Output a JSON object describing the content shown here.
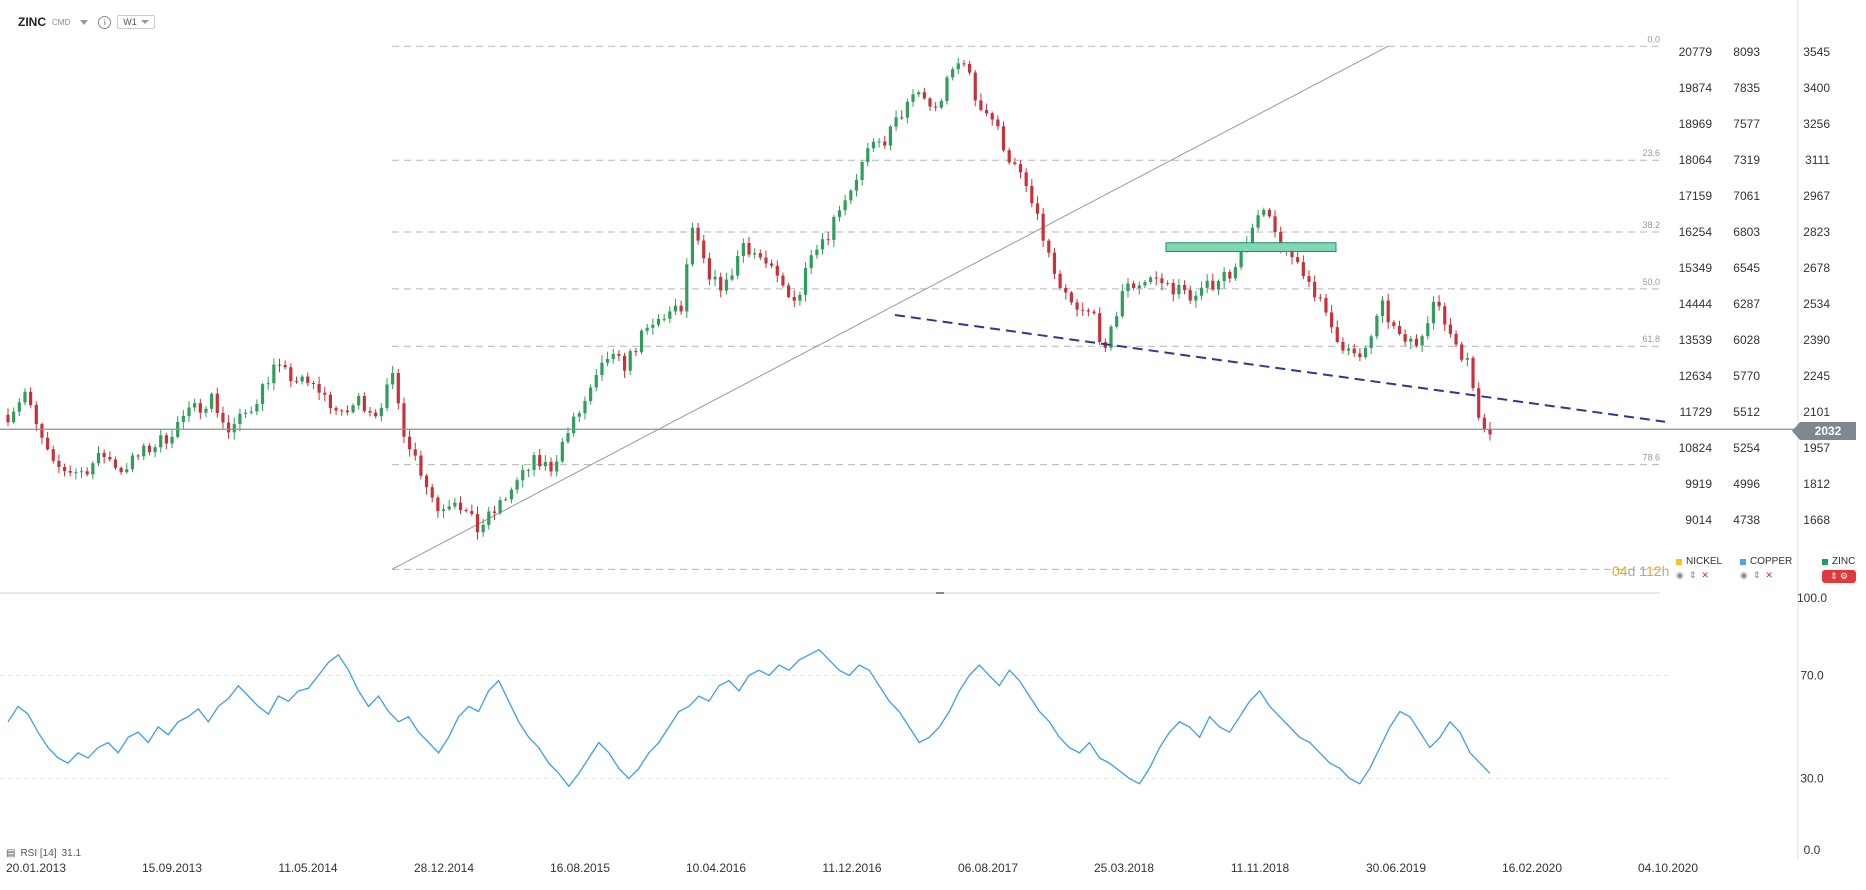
{
  "toolbar": {
    "symbol": "ZINC",
    "market": "CMD",
    "timeframe": "W1"
  },
  "last_price": "2032",
  "timer": {
    "a": "04",
    "b": "d",
    "c": "1",
    "d": "12",
    "e": "h"
  },
  "rsi": {
    "label": "RSI [14]",
    "value": "31.1"
  },
  "legend": [
    {
      "name": "NICKEL",
      "color": "#f5c518"
    },
    {
      "name": "COPPER",
      "color": "#4aa8e8"
    },
    {
      "name": "ZINC",
      "color": "#1aa06a"
    }
  ],
  "colors": {
    "up": "#2e9e5b",
    "down": "#c9303a",
    "rsi_line": "#3a9ee8",
    "trend": "#2b3a8f",
    "zone": "#7fd8b4"
  },
  "chart_data": {
    "type": "candlestick",
    "x_ticks": [
      "20.01.2013",
      "15.09.2013",
      "11.05.2014",
      "28.12.2014",
      "16.08.2015",
      "10.04.2016",
      "11.12.2016",
      "06.08.2017",
      "25.03.2018",
      "11.11.2018",
      "30.06.2019",
      "16.02.2020",
      "04.10.2020"
    ],
    "axis_nickel": [
      "20779",
      "19874",
      "18969",
      "18064",
      "17159",
      "16254",
      "15349",
      "14444",
      "13539",
      "12634",
      "11729",
      "10824",
      "9919",
      "9014"
    ],
    "axis_copper": [
      "8093",
      "7835",
      "7577",
      "7319",
      "7061",
      "6803",
      "6545",
      "6287",
      "6028",
      "5770",
      "5512",
      "5254",
      "4996",
      "4738"
    ],
    "axis_zinc": [
      "3545",
      "3400",
      "3256",
      "3111",
      "2967",
      "2823",
      "2678",
      "2534",
      "2390",
      "2245",
      "2101",
      "1957",
      "1812",
      "1668"
    ],
    "zinc_axis_range": [
      1668,
      3545
    ],
    "fib_levels": [
      {
        "label": "0.0",
        "value": 3568
      },
      {
        "label": "23.6",
        "value": 3111
      },
      {
        "label": "38.2",
        "value": 2823
      },
      {
        "label": "50.0",
        "value": 2595
      },
      {
        "label": "61.8",
        "value": 2365
      },
      {
        "label": "78.6",
        "value": 1890
      },
      {
        "label": "",
        "value": 1470
      }
    ],
    "zinc_path": [
      [
        0,
        2090
      ],
      [
        6,
        2180
      ],
      [
        10,
        2040
      ],
      [
        16,
        1880
      ],
      [
        26,
        1860
      ],
      [
        34,
        1930
      ],
      [
        40,
        1870
      ],
      [
        48,
        1940
      ],
      [
        56,
        2000
      ],
      [
        62,
        2080
      ],
      [
        72,
        2160
      ],
      [
        78,
        2020
      ],
      [
        86,
        2120
      ],
      [
        94,
        2280
      ],
      [
        100,
        2240
      ],
      [
        110,
        2190
      ],
      [
        118,
        2080
      ],
      [
        124,
        2150
      ],
      [
        130,
        2100
      ],
      [
        136,
        2230
      ],
      [
        140,
        2030
      ],
      [
        144,
        1920
      ],
      [
        152,
        1710
      ],
      [
        158,
        1760
      ],
      [
        166,
        1630
      ],
      [
        172,
        1700
      ],
      [
        178,
        1790
      ],
      [
        186,
        1900
      ],
      [
        192,
        1880
      ],
      [
        198,
        2020
      ],
      [
        206,
        2180
      ],
      [
        212,
        2320
      ],
      [
        218,
        2290
      ],
      [
        224,
        2400
      ],
      [
        232,
        2490
      ],
      [
        238,
        2510
      ],
      [
        242,
        2840
      ],
      [
        248,
        2620
      ],
      [
        254,
        2610
      ],
      [
        260,
        2780
      ],
      [
        266,
        2720
      ],
      [
        272,
        2630
      ],
      [
        276,
        2560
      ],
      [
        280,
        2580
      ],
      [
        284,
        2760
      ],
      [
        290,
        2820
      ],
      [
        294,
        2930
      ],
      [
        298,
        3000
      ],
      [
        304,
        3140
      ],
      [
        310,
        3190
      ],
      [
        316,
        3300
      ],
      [
        322,
        3380
      ],
      [
        328,
        3310
      ],
      [
        334,
        3470
      ],
      [
        338,
        3520
      ],
      [
        342,
        3360
      ],
      [
        348,
        3280
      ],
      [
        354,
        3120
      ],
      [
        360,
        3000
      ],
      [
        366,
        2800
      ],
      [
        372,
        2580
      ],
      [
        378,
        2500
      ],
      [
        384,
        2490
      ],
      [
        388,
        2330
      ],
      [
        394,
        2590
      ],
      [
        404,
        2640
      ],
      [
        414,
        2590
      ],
      [
        420,
        2560
      ],
      [
        428,
        2640
      ],
      [
        432,
        2660
      ],
      [
        438,
        2800
      ],
      [
        444,
        2900
      ],
      [
        450,
        2770
      ],
      [
        456,
        2700
      ],
      [
        462,
        2590
      ],
      [
        466,
        2480
      ],
      [
        472,
        2370
      ],
      [
        478,
        2300
      ],
      [
        486,
        2520
      ],
      [
        492,
        2390
      ],
      [
        498,
        2380
      ],
      [
        504,
        2540
      ],
      [
        510,
        2420
      ],
      [
        516,
        2300
      ],
      [
        520,
        2100
      ],
      [
        522,
        2060
      ],
      [
        524,
        2030
      ]
    ],
    "rsi_axis": [
      "100.0",
      "70.0",
      "30.0",
      "0.0"
    ],
    "rsi_values": [
      52,
      58,
      55,
      48,
      42,
      38,
      36,
      40,
      38,
      42,
      44,
      40,
      46,
      48,
      44,
      50,
      47,
      52,
      54,
      57,
      52,
      58,
      61,
      66,
      62,
      58,
      55,
      62,
      60,
      64,
      65,
      70,
      75,
      78,
      72,
      64,
      58,
      62,
      56,
      52,
      54,
      48,
      44,
      40,
      46,
      54,
      58,
      56,
      64,
      68,
      60,
      52,
      46,
      42,
      36,
      32,
      27,
      32,
      38,
      44,
      40,
      34,
      30,
      34,
      40,
      44,
      50,
      56,
      58,
      62,
      60,
      66,
      68,
      64,
      70,
      72,
      70,
      74,
      72,
      76,
      78,
      80,
      76,
      72,
      70,
      74,
      72,
      66,
      60,
      56,
      50,
      44,
      46,
      50,
      56,
      64,
      70,
      74,
      70,
      66,
      72,
      68,
      62,
      56,
      52,
      46,
      42,
      40,
      44,
      38,
      36,
      33,
      30,
      28,
      34,
      42,
      48,
      52,
      50,
      46,
      54,
      50,
      48,
      54,
      60,
      64,
      58,
      54,
      50,
      46,
      44,
      40,
      36,
      34,
      30,
      28,
      34,
      42,
      50,
      56,
      54,
      48,
      42,
      46,
      52,
      48,
      40,
      36,
      32
    ]
  }
}
